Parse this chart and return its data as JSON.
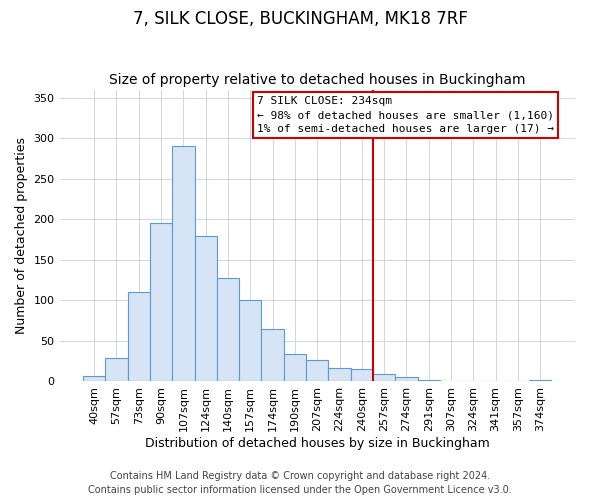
{
  "title": "7, SILK CLOSE, BUCKINGHAM, MK18 7RF",
  "subtitle": "Size of property relative to detached houses in Buckingham",
  "xlabel": "Distribution of detached houses by size in Buckingham",
  "ylabel": "Number of detached properties",
  "bar_labels": [
    "40sqm",
    "57sqm",
    "73sqm",
    "90sqm",
    "107sqm",
    "124sqm",
    "140sqm",
    "157sqm",
    "174sqm",
    "190sqm",
    "207sqm",
    "224sqm",
    "240sqm",
    "257sqm",
    "274sqm",
    "291sqm",
    "307sqm",
    "324sqm",
    "341sqm",
    "357sqm",
    "374sqm"
  ],
  "bar_values": [
    7,
    29,
    110,
    195,
    290,
    180,
    128,
    100,
    65,
    34,
    26,
    17,
    15,
    9,
    5,
    2,
    0,
    0,
    0,
    1,
    2
  ],
  "bar_color": "#d6e4f5",
  "bar_edge_color": "#5b9bd5",
  "ylim": [
    0,
    360
  ],
  "yticks": [
    0,
    50,
    100,
    150,
    200,
    250,
    300,
    350
  ],
  "vline_x_index": 12,
  "vline_color": "#cc0000",
  "annotation_title": "7 SILK CLOSE: 234sqm",
  "annotation_line2": "← 98% of detached houses are smaller (1,160)",
  "annotation_line3": "1% of semi-detached houses are larger (17) →",
  "footer_line1": "Contains HM Land Registry data © Crown copyright and database right 2024.",
  "footer_line2": "Contains public sector information licensed under the Open Government Licence v3.0.",
  "background_color": "#ffffff",
  "grid_color": "#c8d0dc",
  "title_fontsize": 12,
  "subtitle_fontsize": 10,
  "axis_label_fontsize": 9,
  "tick_fontsize": 8,
  "footer_fontsize": 7,
  "annotation_fontsize": 8
}
